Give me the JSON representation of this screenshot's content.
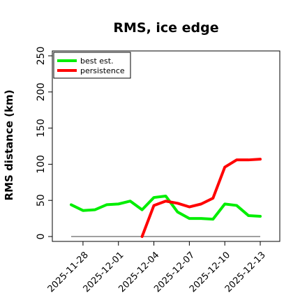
{
  "chart_data": {
    "type": "line",
    "title": "RMS, ice edge",
    "xlabel": "",
    "ylabel": "RMS distance (km)",
    "ylim": [
      0,
      250
    ],
    "yticks": [
      0,
      50,
      100,
      150,
      200,
      250
    ],
    "x": [
      "2025-11-27",
      "2025-11-28",
      "2025-11-29",
      "2025-11-30",
      "2025-12-01",
      "2025-12-02",
      "2025-12-03",
      "2025-12-04",
      "2025-12-05",
      "2025-12-06",
      "2025-12-07",
      "2025-12-08",
      "2025-12-09",
      "2025-12-10",
      "2025-12-11",
      "2025-12-12",
      "2025-12-13"
    ],
    "xticks": [
      "2025-11-28",
      "2025-12-01",
      "2025-12-04",
      "2025-12-07",
      "2025-12-10",
      "2025-12-13"
    ],
    "legend_position": "top-left",
    "grid": false,
    "series": [
      {
        "name": "best est.",
        "color": "#00ee00",
        "values": [
          44,
          36,
          37,
          44,
          45,
          49,
          37,
          54,
          56,
          34,
          25,
          25,
          24,
          45,
          43,
          29,
          28
        ]
      },
      {
        "name": "persistence",
        "color": "#ff0000",
        "values": [
          null,
          null,
          null,
          null,
          null,
          null,
          0,
          43,
          49,
          46,
          41,
          45,
          53,
          96,
          106,
          106,
          107
        ]
      }
    ],
    "baseline": {
      "value": 0,
      "color": "#808080"
    }
  }
}
